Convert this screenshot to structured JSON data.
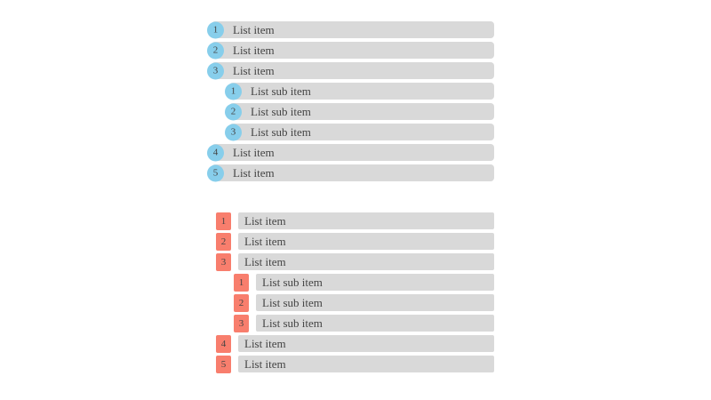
{
  "page": {
    "background": "#ffffff"
  },
  "colors": {
    "bar_background": "#d9d9d9",
    "label_text": "#444444",
    "badge_text": "#444444",
    "circle_badge_background": "#87ceeb",
    "square_badge_background": "#f87e6d"
  },
  "lists": [
    {
      "name": "circle-badge-list",
      "badge_shape": "circle",
      "items": [
        {
          "number": "1",
          "label": "List item",
          "sub": false
        },
        {
          "number": "2",
          "label": "List item",
          "sub": false
        },
        {
          "number": "3",
          "label": "List item",
          "sub": false
        },
        {
          "number": "1",
          "label": "List sub item",
          "sub": true
        },
        {
          "number": "2",
          "label": "List sub item",
          "sub": true
        },
        {
          "number": "3",
          "label": "List sub item",
          "sub": true
        },
        {
          "number": "4",
          "label": "List item",
          "sub": false
        },
        {
          "number": "5",
          "label": "List item",
          "sub": false
        }
      ]
    },
    {
      "name": "square-badge-list",
      "badge_shape": "square",
      "items": [
        {
          "number": "1",
          "label": "List item",
          "sub": false
        },
        {
          "number": "2",
          "label": "List item",
          "sub": false
        },
        {
          "number": "3",
          "label": "List item",
          "sub": false
        },
        {
          "number": "1",
          "label": "List sub item",
          "sub": true
        },
        {
          "number": "2",
          "label": "List sub item",
          "sub": true
        },
        {
          "number": "3",
          "label": "List sub item",
          "sub": true
        },
        {
          "number": "4",
          "label": "List item",
          "sub": false
        },
        {
          "number": "5",
          "label": "List item",
          "sub": false
        }
      ]
    }
  ]
}
